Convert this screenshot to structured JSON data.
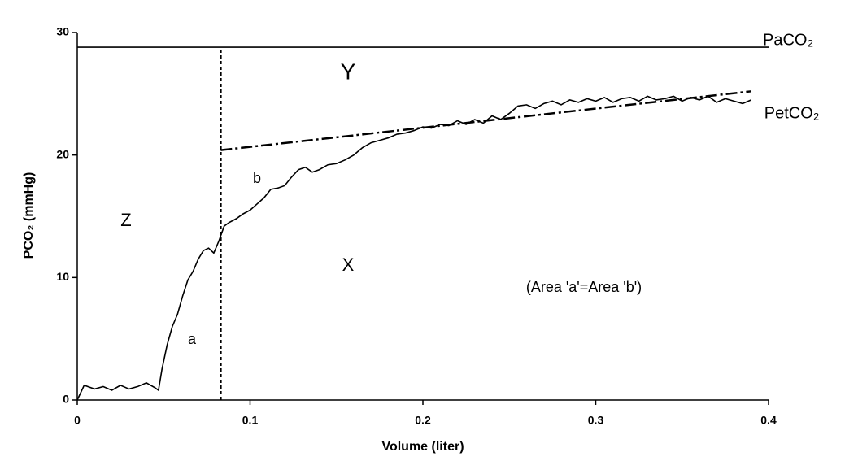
{
  "chart_data": {
    "type": "line",
    "xlabel": "Volume (liter)",
    "ylabel": "PCO₂ (mmHg)",
    "xlim": [
      0,
      0.4
    ],
    "xticks": [
      0,
      0.1,
      0.2,
      0.3,
      0.4
    ],
    "ylim": [
      0,
      30
    ],
    "yticks": [
      0,
      10,
      20,
      30
    ],
    "grid": false,
    "series": [
      {
        "name": "PaCO₂",
        "color": "#000000",
        "style": "solid",
        "x": [
          0,
          0.4
        ],
        "values": [
          28.8,
          28.8
        ]
      },
      {
        "name": "PetCO₂",
        "color": "#000000",
        "style": "dashdot",
        "x": [
          0.083,
          0.39
        ],
        "values": [
          20.4,
          25.2
        ]
      },
      {
        "color": "#000000",
        "style": "dotted",
        "x": [
          0.083,
          0.083
        ],
        "values": [
          0,
          28.8
        ]
      },
      {
        "color": "#000000",
        "style": "solid",
        "x": [
          0,
          0.004,
          0.01,
          0.015,
          0.02,
          0.025,
          0.03,
          0.035,
          0.04,
          0.045,
          0.047,
          0.049,
          0.052,
          0.055,
          0.058,
          0.061,
          0.064,
          0.067,
          0.07,
          0.073,
          0.076,
          0.079,
          0.082,
          0.085,
          0.088,
          0.092,
          0.096,
          0.1,
          0.104,
          0.108,
          0.112,
          0.116,
          0.12,
          0.124,
          0.128,
          0.132,
          0.136,
          0.14,
          0.145,
          0.15,
          0.155,
          0.16,
          0.165,
          0.17,
          0.175,
          0.18,
          0.185,
          0.19,
          0.195,
          0.2,
          0.205,
          0.21,
          0.215,
          0.22,
          0.225,
          0.23,
          0.235,
          0.24,
          0.245,
          0.25,
          0.255,
          0.26,
          0.265,
          0.27,
          0.275,
          0.28,
          0.285,
          0.29,
          0.295,
          0.3,
          0.305,
          0.31,
          0.315,
          0.32,
          0.325,
          0.33,
          0.335,
          0.34,
          0.345,
          0.35,
          0.355,
          0.36,
          0.365,
          0.37,
          0.375,
          0.38,
          0.385,
          0.39
        ],
        "values": [
          0,
          1.2,
          0.9,
          1.1,
          0.8,
          1.2,
          0.9,
          1.1,
          1.4,
          1.0,
          0.8,
          2.5,
          4.5,
          6,
          7,
          8.5,
          9.8,
          10.5,
          11.5,
          12.2,
          12.4,
          12,
          13,
          14.2,
          14.5,
          14.8,
          15.2,
          15.5,
          16,
          16.5,
          17.2,
          17.3,
          17.5,
          18.2,
          18.8,
          19,
          18.6,
          18.8,
          19.2,
          19.3,
          19.6,
          20,
          20.6,
          21,
          21.2,
          21.4,
          21.7,
          21.8,
          22,
          22.3,
          22.2,
          22.5,
          22.4,
          22.8,
          22.5,
          22.9,
          22.6,
          23.2,
          22.9,
          23.4,
          24,
          24.1,
          23.8,
          24.2,
          24.4,
          24.1,
          24.5,
          24.3,
          24.6,
          24.4,
          24.7,
          24.3,
          24.6,
          24.7,
          24.4,
          24.8,
          24.5,
          24.6,
          24.8,
          24.4,
          24.7,
          24.5,
          24.8,
          24.3,
          24.6,
          24.4,
          24.2,
          24.5
        ]
      }
    ],
    "annotations": [
      "Y",
      "Z",
      "b",
      "X",
      "a",
      "(Area 'a'=Area 'b')"
    ]
  }
}
